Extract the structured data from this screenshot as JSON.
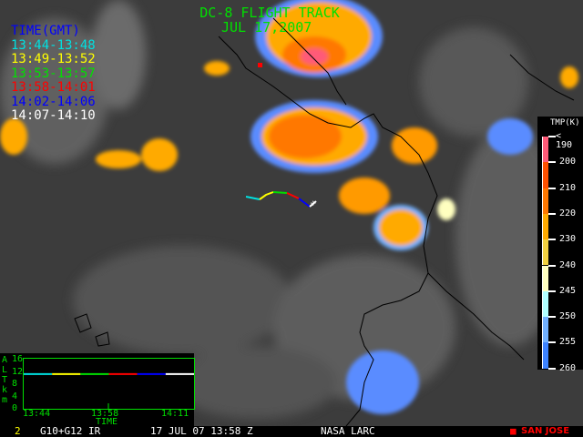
{
  "title": "DC-8 FLIGHT TRACK",
  "date": "JUL 17,2007",
  "legend": {
    "header": "TIME(GMT)",
    "header_color": "#0000ff",
    "entries": [
      {
        "label": "13:44-13:48",
        "color": "#00e0e0"
      },
      {
        "label": "13:49-13:52",
        "color": "#ffff00"
      },
      {
        "label": "13:53-13:57",
        "color": "#00e000"
      },
      {
        "label": "13:58-14:01",
        "color": "#ff0000"
      },
      {
        "label": "14:02-14:06",
        "color": "#0000ff"
      },
      {
        "label": "14:07-14:10",
        "color": "#ffffff"
      }
    ]
  },
  "colorbar": {
    "label": "TMP(K)",
    "ticks": [
      "< 190",
      "200",
      "210",
      "220",
      "230",
      "240",
      "245",
      "250",
      "255",
      "260"
    ],
    "colors": [
      "#ff5a78",
      "#ff5000",
      "#ff7800",
      "#ffaa00",
      "#f0d040",
      "#ffffc0",
      "#b0ffff",
      "#70b0ff",
      "#3c82ff"
    ]
  },
  "altitude_panel": {
    "ylabel": "ALT km",
    "yticks": [
      "16",
      "12",
      "8",
      "4",
      "0"
    ],
    "xticks": [
      "13:44",
      "13:58",
      "14:11"
    ],
    "xlabel": "TIME",
    "altitude_km": 11
  },
  "status_bar": {
    "frame": "2",
    "satellite": "G10+G12 IR",
    "datetime": "17 JUL 07 13:58 Z",
    "source": "NASA LARC",
    "marker_label": "SAN JOSE",
    "marker_color": "#ff0000"
  }
}
